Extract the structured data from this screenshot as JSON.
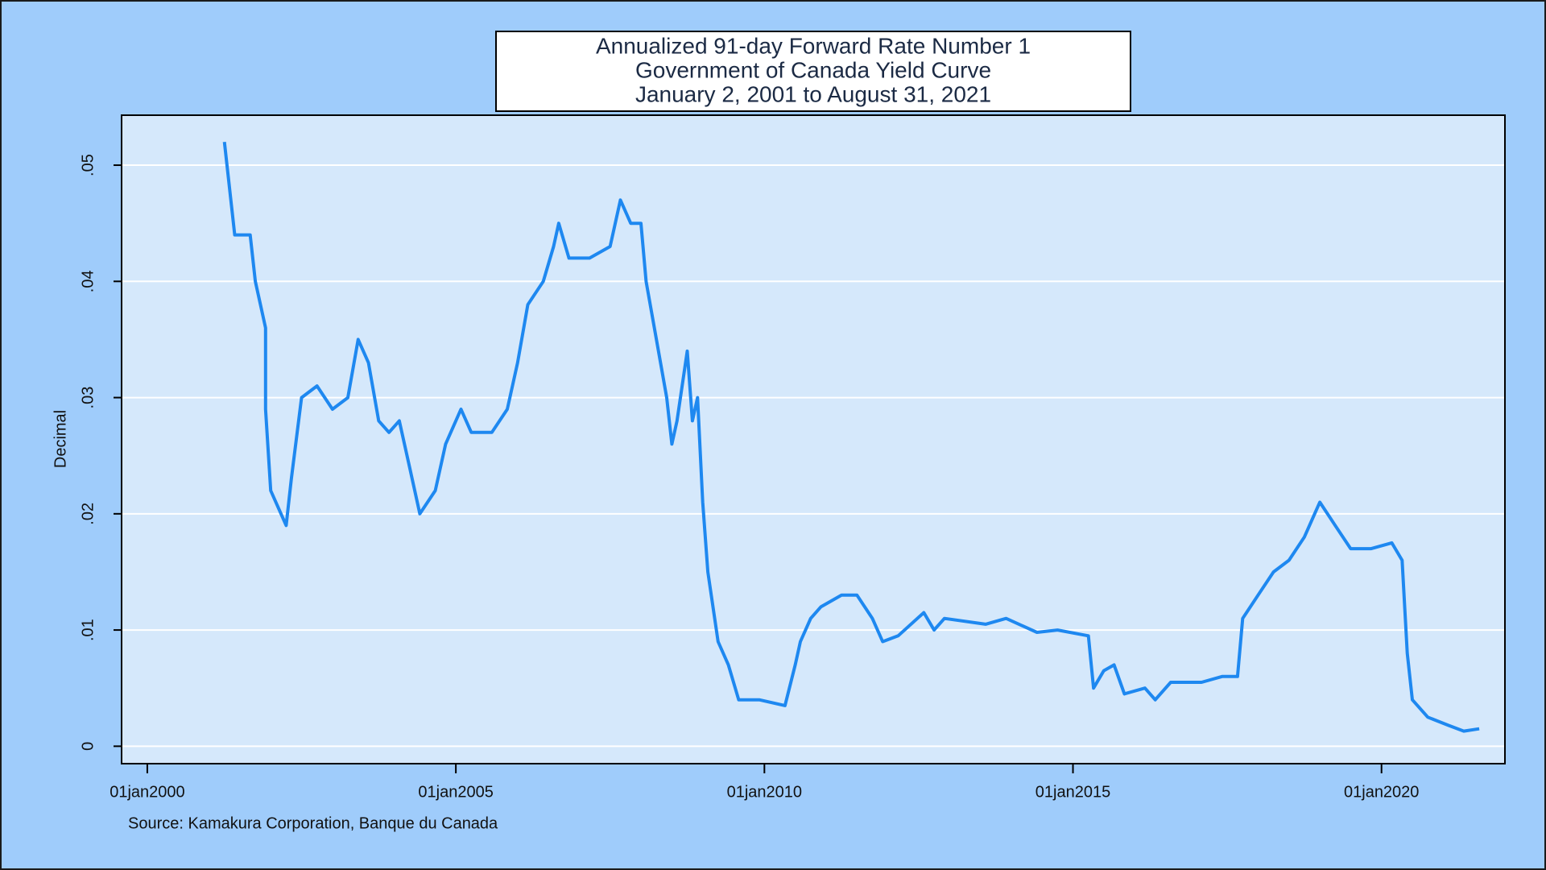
{
  "chart_data": {
    "type": "line",
    "title": [
      "Annualized 91-day Forward Rate Number 1",
      "Government of Canada Yield Curve",
      "January 2, 2001 to August 31, 2021"
    ],
    "y_label": "Decimal",
    "source": "Source: Kamakura Corporation, Banque du Canada",
    "xlim": [
      "1999-08",
      "2022-01"
    ],
    "xticks": [
      {
        "value": "2000-01",
        "label": "01jan2000"
      },
      {
        "value": "2005-01",
        "label": "01jan2005"
      },
      {
        "value": "2010-01",
        "label": "01jan2010"
      },
      {
        "value": "2015-01",
        "label": "01jan2015"
      },
      {
        "value": "2020-01",
        "label": "01jan2020"
      }
    ],
    "ylim": [
      -0.0015,
      0.0543
    ],
    "yticks": [
      0,
      {
        "value": 0.01,
        "label": ".01"
      },
      {
        "value": 0.02,
        "label": ".02"
      },
      {
        "value": 0.03,
        "label": ".03"
      },
      {
        "value": 0.04,
        "label": ".04"
      },
      {
        "value": 0.05,
        "label": ".05"
      }
    ],
    "grid": true,
    "x": [
      "2001-04",
      "2001-06",
      "2001-09",
      "2001-10",
      "2001-12",
      "2001-12",
      "2002-01",
      "2002-04",
      "2002-05",
      "2002-07",
      "2002-10",
      "2003-01",
      "2003-04",
      "2003-06",
      "2003-08",
      "2003-10",
      "2003-12",
      "2004-02",
      "2004-04",
      "2004-06",
      "2004-09",
      "2004-11",
      "2005-02",
      "2005-04",
      "2005-08",
      "2005-11",
      "2006-01",
      "2006-03",
      "2006-06",
      "2006-08",
      "2006-09",
      "2006-11",
      "2007-03",
      "2007-07",
      "2007-09",
      "2007-11",
      "2008-01",
      "2008-02",
      "2008-04",
      "2008-06",
      "2008-07",
      "2008-08",
      "2008-10",
      "2008-11",
      "2008-12",
      "2009-01",
      "2009-02",
      "2009-04",
      "2009-06",
      "2009-08",
      "2009-12",
      "2010-05",
      "2010-07",
      "2010-08",
      "2010-10",
      "2010-12",
      "2011-04",
      "2011-07",
      "2011-10",
      "2011-12",
      "2012-03",
      "2012-08",
      "2012-10",
      "2012-12",
      "2013-08",
      "2013-12",
      "2014-06",
      "2014-10",
      "2015-04",
      "2015-05",
      "2015-07",
      "2015-09",
      "2015-11",
      "2016-03",
      "2016-05",
      "2016-08",
      "2017-02",
      "2017-06",
      "2017-09",
      "2017-10",
      "2018-01",
      "2018-04",
      "2018-07",
      "2018-10",
      "2019-01",
      "2019-04",
      "2019-07",
      "2019-11",
      "2020-03",
      "2020-05",
      "2020-06",
      "2020-07",
      "2020-10",
      "2021-02",
      "2021-05",
      "2021-08"
    ],
    "series": [
      {
        "name": "Annualized 91-day Forward Rate Number 1",
        "color": "#1e88f0",
        "values": [
          0.052,
          0.044,
          0.044,
          0.04,
          0.036,
          0.029,
          0.022,
          0.019,
          0.023,
          0.03,
          0.031,
          0.029,
          0.03,
          0.035,
          0.033,
          0.028,
          0.027,
          0.028,
          0.024,
          0.02,
          0.022,
          0.026,
          0.029,
          0.027,
          0.027,
          0.029,
          0.033,
          0.038,
          0.04,
          0.043,
          0.045,
          0.042,
          0.042,
          0.043,
          0.047,
          0.045,
          0.045,
          0.04,
          0.035,
          0.03,
          0.026,
          0.028,
          0.034,
          0.028,
          0.03,
          0.021,
          0.015,
          0.009,
          0.007,
          0.004,
          0.004,
          0.0035,
          0.007,
          0.009,
          0.011,
          0.012,
          0.013,
          0.013,
          0.011,
          0.009,
          0.0095,
          0.0115,
          0.01,
          0.011,
          0.0105,
          0.011,
          0.0098,
          0.01,
          0.0095,
          0.005,
          0.0065,
          0.007,
          0.0045,
          0.005,
          0.004,
          0.0055,
          0.0055,
          0.006,
          0.006,
          0.011,
          0.013,
          0.015,
          0.016,
          0.018,
          0.021,
          0.019,
          0.017,
          0.017,
          0.0175,
          0.016,
          0.008,
          0.004,
          0.0025,
          0.0018,
          0.0013,
          0.0015
        ]
      }
    ]
  }
}
